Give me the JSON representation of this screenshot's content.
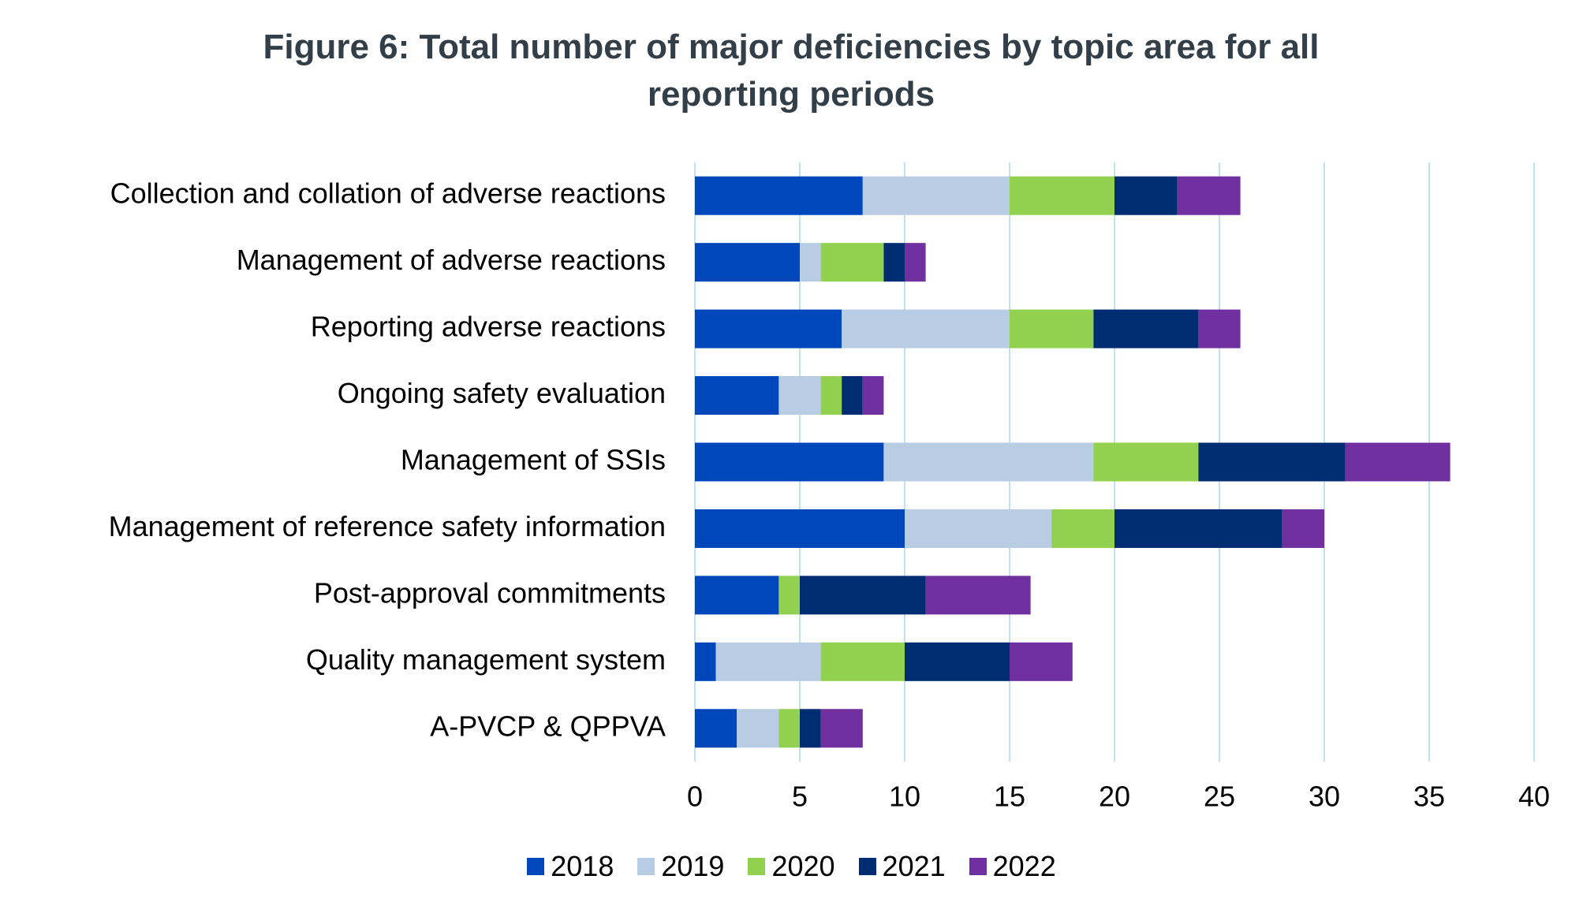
{
  "chart_data": {
    "type": "bar",
    "orientation": "horizontal",
    "stacked": true,
    "title": "Figure 6: Total number of major deficiencies by topic area for all reporting periods",
    "categories": [
      "Collection and collation of adverse reactions",
      "Management of adverse reactions",
      "Reporting adverse reactions",
      "Ongoing safety evaluation",
      "Management of SSIs",
      "Management of reference safety information",
      "Post-approval commitments",
      "Quality management system",
      "A-PVCP & QPPVA"
    ],
    "series": [
      {
        "name": "2018",
        "color": "#0047bb",
        "values": [
          8,
          5,
          7,
          4,
          9,
          10,
          4,
          1,
          2
        ]
      },
      {
        "name": "2019",
        "color": "#b8cce4",
        "values": [
          7,
          1,
          8,
          2,
          10,
          7,
          0,
          5,
          2
        ]
      },
      {
        "name": "2020",
        "color": "#92d050",
        "values": [
          5,
          3,
          4,
          1,
          5,
          3,
          1,
          4,
          1
        ]
      },
      {
        "name": "2021",
        "color": "#002d72",
        "values": [
          3,
          1,
          5,
          1,
          7,
          8,
          6,
          5,
          1
        ]
      },
      {
        "name": "2022",
        "color": "#7030a0",
        "values": [
          3,
          1,
          2,
          1,
          5,
          2,
          5,
          3,
          2
        ]
      }
    ],
    "xlim": [
      0,
      40
    ],
    "xticks": [
      0,
      5,
      10,
      15,
      20,
      25,
      30,
      35,
      40
    ],
    "grid": true,
    "grid_color": "#bde3f5",
    "legend": "bottom"
  }
}
